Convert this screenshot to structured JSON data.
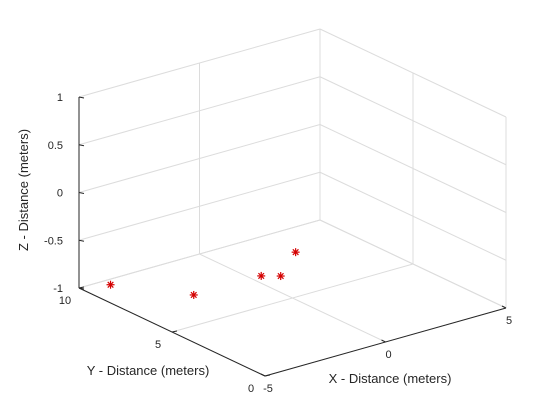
{
  "chart_data": {
    "type": "scatter",
    "title": "",
    "xlabel": "X - Distance (meters)",
    "ylabel": "Y - Distance (meters)",
    "zlabel": "Z - Distance (meters)",
    "xlim": [
      -5,
      5
    ],
    "ylim": [
      0,
      10
    ],
    "zlim": [
      -1,
      1
    ],
    "xticks": [
      -5,
      0,
      5
    ],
    "yticks": [
      0,
      5,
      10
    ],
    "zticks": [
      -1,
      -0.5,
      0,
      0.5,
      1
    ],
    "grid": true,
    "marker": "asterisk",
    "marker_color": "#d40000",
    "series": [
      {
        "points": [
          {
            "x": -4.0,
            "y": 9.6,
            "z": -1
          },
          {
            "x": -2.4,
            "y": 7.2,
            "z": -1
          },
          {
            "x": 0.4,
            "y": 7.2,
            "z": -1
          },
          {
            "x": 0.9,
            "y": 6.8,
            "z": -1
          },
          {
            "x": 2.6,
            "y": 8.2,
            "z": -1
          }
        ]
      }
    ]
  }
}
